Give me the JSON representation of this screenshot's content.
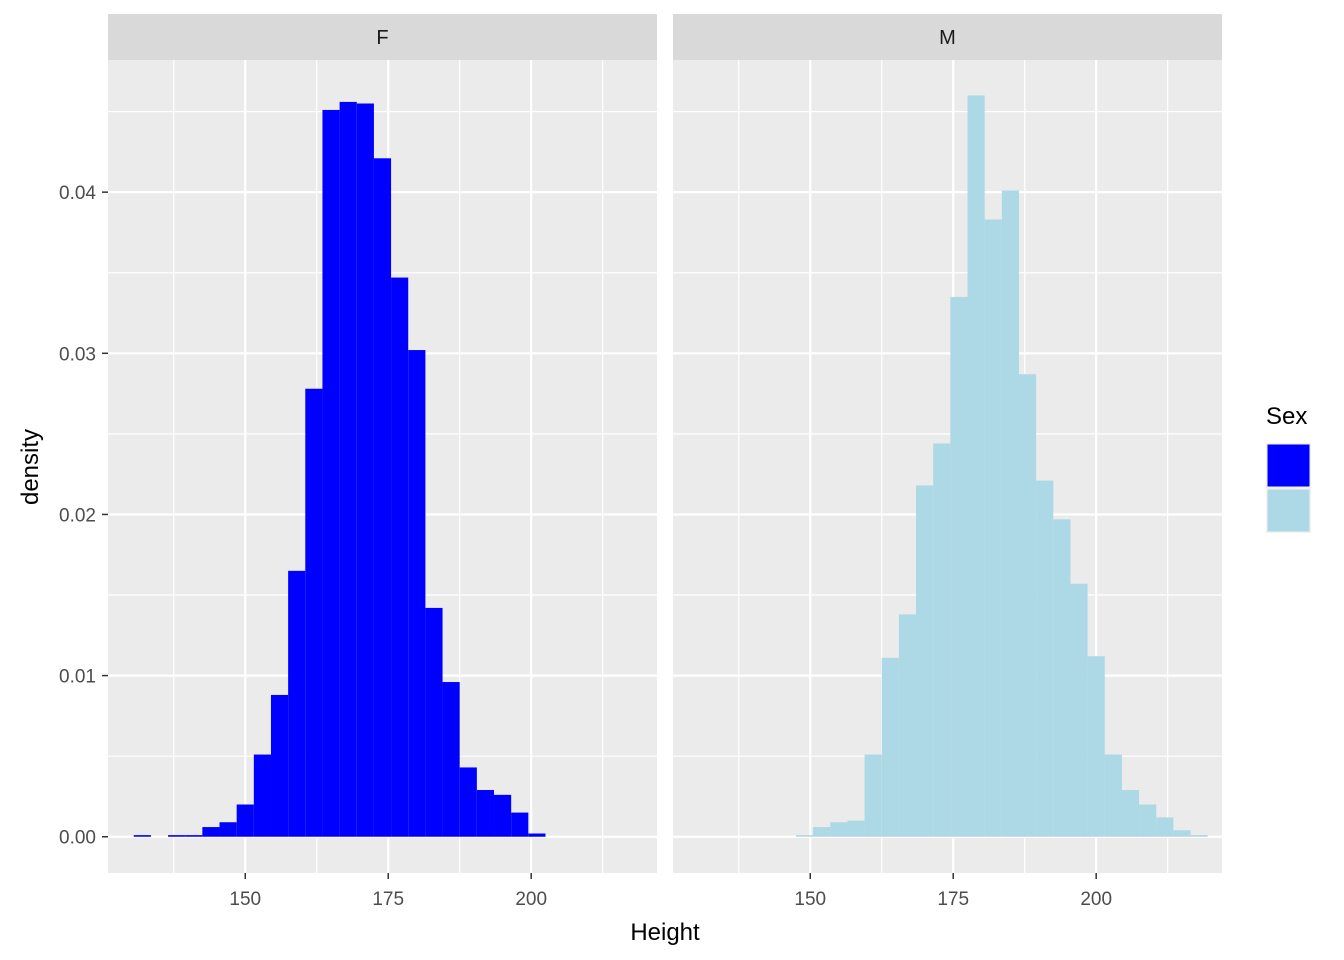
{
  "chart_data": {
    "type": "bar",
    "subtype": "faceted histogram",
    "xlabel": "Height",
    "ylabel": "density",
    "xlim": [
      126,
      222
    ],
    "ylim": [
      -0.00225,
      0.0482
    ],
    "x_ticks": [
      150,
      175,
      200
    ],
    "x_tick_labels": [
      "150",
      "175",
      "200"
    ],
    "y_ticks": [
      0.0,
      0.01,
      0.02,
      0.03,
      0.04
    ],
    "y_tick_labels": [
      "0.00",
      "0.01",
      "0.02",
      "0.03",
      "0.04"
    ],
    "grid": true,
    "legend": {
      "title": "Sex",
      "placement": "right",
      "entries": [
        {
          "label": "F",
          "color": "#0000FF"
        },
        {
          "label": "M",
          "color": "#ADD8E6"
        }
      ]
    },
    "bin_width": 3.0,
    "panels": [
      {
        "strip_label": "F",
        "series_name": "F",
        "color": "#0000FF",
        "bins_x": [
          132.0,
          135.0,
          138.0,
          141.0,
          144.0,
          147.0,
          150.0,
          153.0,
          156.0,
          159.0,
          162.0,
          165.0,
          168.0,
          171.0,
          174.0,
          177.0,
          180.0,
          183.0,
          186.0,
          189.0,
          192.0,
          195.0,
          198.0,
          201.0
        ],
        "values": [
          0.0001,
          0.0,
          0.0001,
          0.0001,
          0.0006,
          0.0009,
          0.002,
          0.0051,
          0.0088,
          0.0165,
          0.0278,
          0.0451,
          0.0456,
          0.0455,
          0.0421,
          0.0347,
          0.0302,
          0.0142,
          0.0096,
          0.0043,
          0.0029,
          0.0026,
          0.0015,
          0.0002
        ]
      },
      {
        "strip_label": "M",
        "series_name": "M",
        "color": "#ADD8E6",
        "bins_x": [
          149.0,
          152.0,
          155.0,
          158.0,
          161.0,
          164.0,
          167.0,
          170.0,
          173.0,
          176.0,
          179.0,
          182.0,
          185.0,
          188.0,
          191.0,
          194.0,
          197.0,
          200.0,
          203.0,
          206.0,
          209.0,
          212.0,
          215.0,
          218.0
        ],
        "values": [
          0.0001,
          0.0006,
          0.0009,
          0.001,
          0.0051,
          0.0111,
          0.0138,
          0.0218,
          0.0244,
          0.0335,
          0.046,
          0.0383,
          0.0401,
          0.0287,
          0.0221,
          0.0197,
          0.0157,
          0.0112,
          0.0051,
          0.0029,
          0.002,
          0.0012,
          0.0004,
          0.0001
        ]
      }
    ]
  }
}
